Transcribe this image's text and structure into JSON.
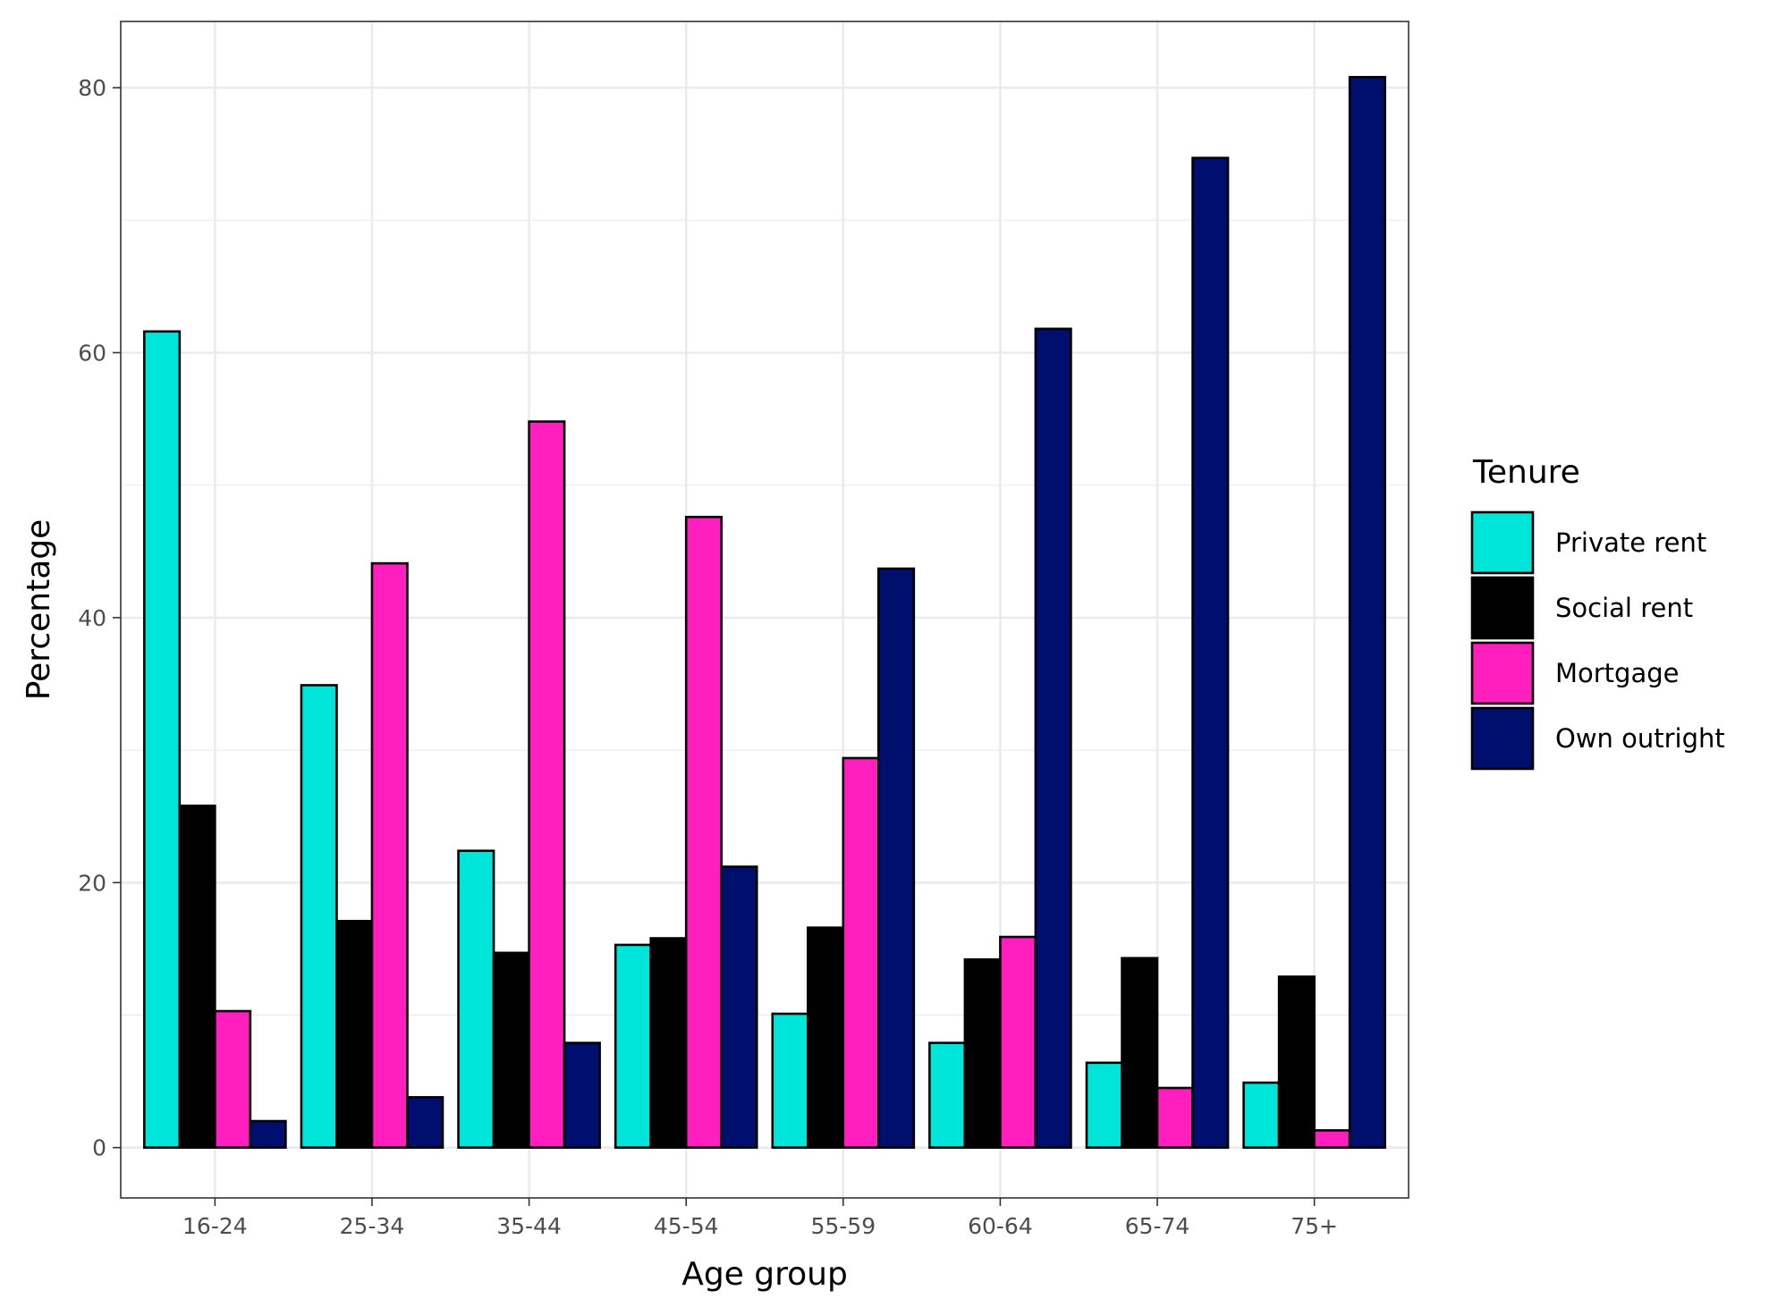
{
  "chart_data": {
    "type": "bar",
    "title": "",
    "xlabel": "Age group",
    "ylabel": "Percentage",
    "categories": [
      "16-24",
      "25-34",
      "35-44",
      "45-54",
      "55-59",
      "60-64",
      "65-74",
      "75+"
    ],
    "ylim": [
      -3.8,
      85
    ],
    "yticks": [
      0,
      20,
      40,
      60,
      80
    ],
    "grid": true,
    "legend": {
      "title": "Tenure",
      "position": "right"
    },
    "series": [
      {
        "name": "Private rent",
        "color": "#00E5D9",
        "values": [
          61.6,
          34.9,
          22.4,
          15.3,
          10.1,
          7.9,
          6.4,
          4.9
        ]
      },
      {
        "name": "Social rent",
        "color": "#000000",
        "values": [
          25.8,
          17.1,
          14.7,
          15.8,
          16.6,
          14.2,
          14.3,
          12.9
        ]
      },
      {
        "name": "Mortgage",
        "color": "#FF1EBE",
        "values": [
          10.3,
          44.1,
          54.8,
          47.6,
          29.4,
          15.9,
          4.5,
          1.3
        ]
      },
      {
        "name": "Own outright",
        "color": "#000E6E",
        "values": [
          2.0,
          3.8,
          7.9,
          21.2,
          43.7,
          61.8,
          74.7,
          80.8
        ]
      }
    ]
  }
}
